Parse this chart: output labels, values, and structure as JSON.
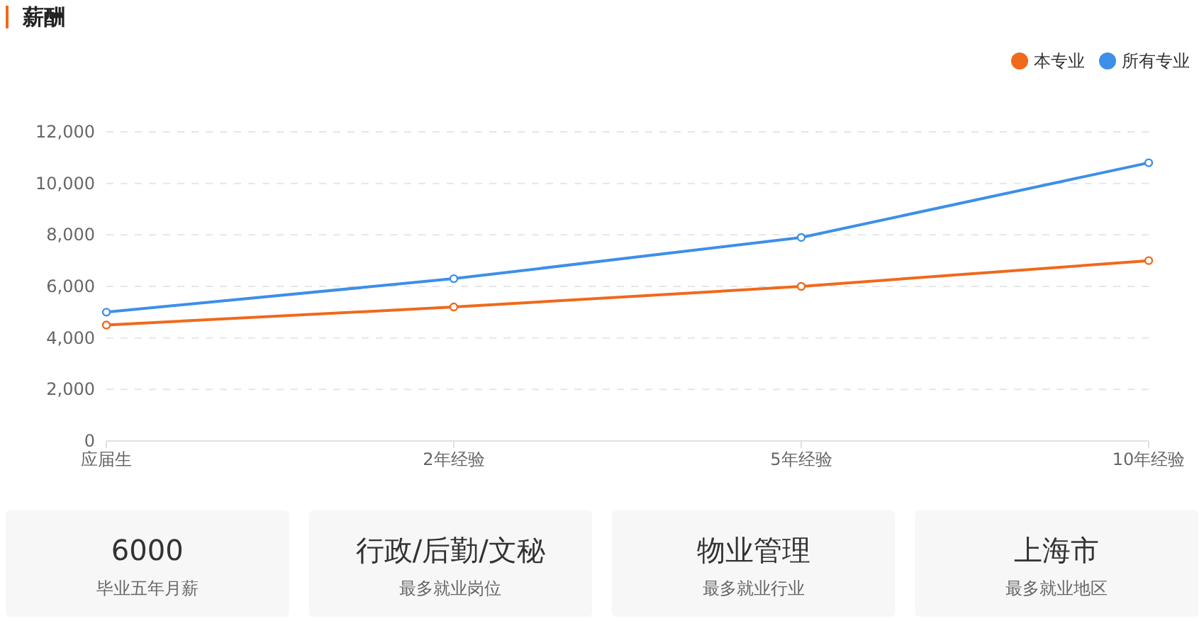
{
  "chart_data": [
    {
      "type": "line",
      "title": "薪酬",
      "categories": [
        "应届生",
        "2年经验",
        "5年经验",
        "10年经验"
      ],
      "series": [
        {
          "name": "本专业",
          "color": "#f0691c",
          "values": [
            4500,
            5200,
            6000,
            7000
          ]
        },
        {
          "name": "所有专业",
          "color": "#3d8fe8",
          "values": [
            5000,
            6300,
            7900,
            10800
          ]
        }
      ],
      "ylim": [
        0,
        12000
      ],
      "yticks": [
        0,
        {
          "value": 2000,
          "label": "2,000"
        },
        {
          "value": 4000,
          "label": "4,000"
        },
        {
          "value": 6000,
          "label": "6,000"
        },
        {
          "value": 8000,
          "label": "8,000"
        },
        {
          "value": 10000,
          "label": "10,000"
        },
        {
          "value": 12000,
          "label": "12,000"
        }
      ],
      "grid": "y",
      "legend": "top right",
      "marker": "circle",
      "line_style": "solid"
    },
    {
      "type": "other",
      "title": "6000",
      "subtitle": "毕业五年月薪"
    },
    {
      "type": "other",
      "title": "行政/后勤/文秘",
      "subtitle": "最多就业岗位"
    },
    {
      "type": "other",
      "title": "物业管理",
      "subtitle": "最多就业行业"
    },
    {
      "type": "other",
      "title": "上海市",
      "subtitle": "最多就业地区"
    }
  ]
}
